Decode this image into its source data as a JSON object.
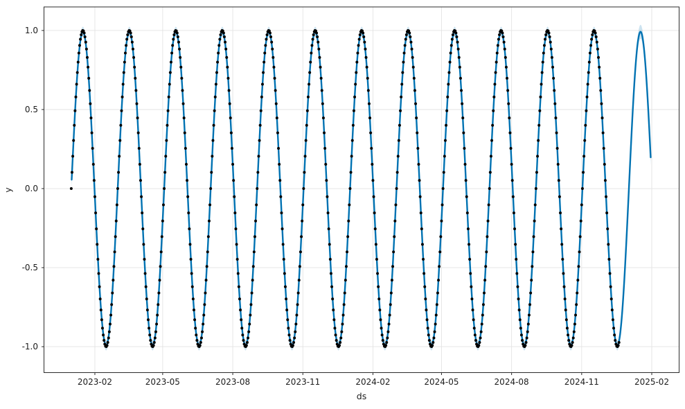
{
  "chart_data": {
    "type": "line",
    "subtype": "time-series forecast (Prophet-style): observed scatter + fitted line + uncertainty band",
    "title": "",
    "xlabel": "ds",
    "ylabel": "y",
    "x_epoch_date": "2023-01-01",
    "x_domain_t": [
      -35.8,
      797.9
    ],
    "y_domain": [
      -1.164,
      1.149
    ],
    "grid": true,
    "legend": "none",
    "x_ticks": [
      {
        "label": "2023-02",
        "t": 31
      },
      {
        "label": "2023-05",
        "t": 120
      },
      {
        "label": "2023-08",
        "t": 212
      },
      {
        "label": "2023-11",
        "t": 304
      },
      {
        "label": "2024-02",
        "t": 396
      },
      {
        "label": "2024-05",
        "t": 486
      },
      {
        "label": "2024-08",
        "t": 578
      },
      {
        "label": "2024-11",
        "t": 670
      },
      {
        "label": "2025-02",
        "t": 762
      }
    ],
    "y_ticks": [
      {
        "label": "1.0",
        "v": 1.0
      },
      {
        "label": "0.5",
        "v": 0.5
      },
      {
        "label": "0.0",
        "v": 0.0
      },
      {
        "label": "-0.5",
        "v": -0.5
      },
      {
        "label": "-1.0",
        "v": -1.0
      }
    ],
    "observations": {
      "name": "observed data points",
      "function": "y = sin(2*pi*t/61), t = days since 2023-01-01",
      "period_days": 61,
      "amplitude": 1.0,
      "start_t": 0,
      "end_t": 719,
      "step_days": 1,
      "start_date": "2023-01-01",
      "end_date": "2024-12-20",
      "color": "#000000",
      "marker_radius": 2
    },
    "forecast": {
      "name": "model fit / forecast line (yhat)",
      "period_days": 61,
      "amplitude": 0.992,
      "start_t": 0.55,
      "end_t": 761,
      "forecast_end_date": "2025-01-31",
      "train_end_t": 719,
      "line_color": "#0072B2",
      "line_width": 2.4,
      "band_color": "#0072B2",
      "band_opacity": 0.2,
      "band_base_halfwidth": 0.032,
      "band_end_halfwidth": 0.05,
      "band_start_halfwidth": 0.06
    },
    "colors": {
      "background": "#ffffff",
      "grid": "#e3e3e3",
      "spine": "#2b2b2b",
      "tick": "#2b2b2b",
      "text": "#1c1c1c"
    },
    "tick_length": 3.5
  }
}
